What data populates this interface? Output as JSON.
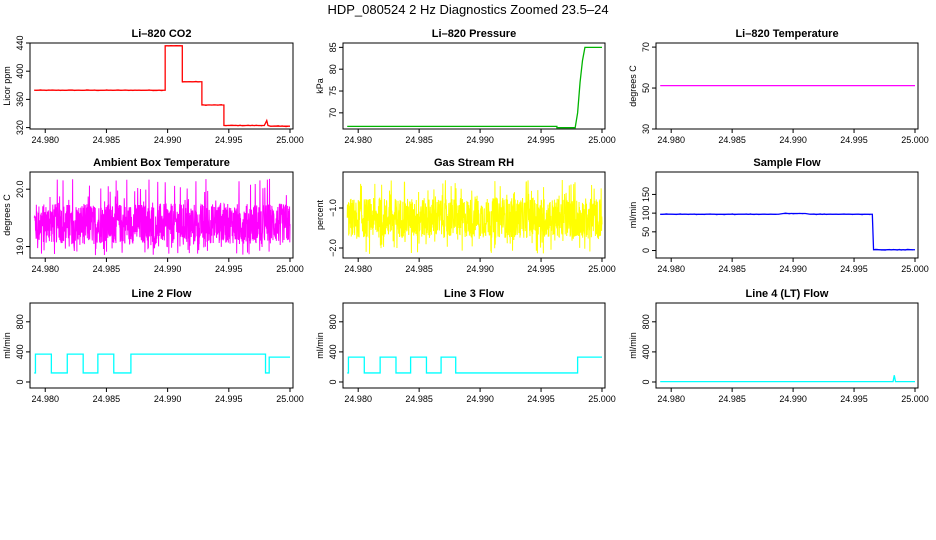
{
  "page_title": "HDP_080524  2 Hz Diagnostics Zoomed 23.5–24",
  "chart_data": [
    {
      "type": "line",
      "title": "Li–820 CO2",
      "xlabel": "",
      "ylabel": "Licor ppm",
      "color": "#ff0000",
      "xlim": [
        24.979,
        25.0
      ],
      "ylim": [
        318,
        440
      ],
      "x_ticks": [
        24.98,
        24.985,
        24.99,
        24.995,
        25.0
      ],
      "x_tick_labels": [
        "24.980",
        "24.985",
        "24.990",
        "24.995",
        "25.000"
      ],
      "y_ticks": [
        320,
        360,
        400,
        440
      ],
      "y_tick_labels": [
        "320",
        "360",
        "400",
        "440"
      ],
      "noise": 1,
      "series": [
        {
          "x": [
            24.9791,
            24.9898,
            24.9898,
            24.9912,
            24.9912,
            24.9928,
            24.9928,
            24.9946,
            24.9946,
            24.9979,
            24.9981,
            24.9982,
            24.9984,
            25.0
          ],
          "y": [
            373,
            373,
            436,
            436,
            385,
            385,
            352,
            352,
            323,
            323,
            330,
            323,
            322,
            322
          ]
        }
      ]
    },
    {
      "type": "line",
      "title": "Li–820 Pressure",
      "xlabel": "",
      "ylabel": "kPa",
      "color": "#00b400",
      "xlim": [
        24.979,
        25.0
      ],
      "ylim": [
        66.3,
        86
      ],
      "x_ticks": [
        24.98,
        24.985,
        24.99,
        24.995,
        25.0
      ],
      "x_tick_labels": [
        "24.980",
        "24.985",
        "24.990",
        "24.995",
        "25.000"
      ],
      "y_ticks": [
        70,
        75,
        80,
        85
      ],
      "y_tick_labels": [
        "70",
        "75",
        "80",
        "85"
      ],
      "noise": 0,
      "series": [
        {
          "x": [
            24.9791,
            24.9963,
            24.9963,
            24.9978,
            24.998,
            24.9982,
            24.9984,
            24.9986,
            25.0
          ],
          "y": [
            66.9,
            66.9,
            66.6,
            66.6,
            70,
            77,
            82,
            85,
            85
          ]
        }
      ]
    },
    {
      "type": "line",
      "title": "Li–820 Temperature",
      "xlabel": "",
      "ylabel": "degrees C",
      "color": "#ff00ff",
      "xlim": [
        24.979,
        25.0
      ],
      "ylim": [
        30,
        72
      ],
      "x_ticks": [
        24.98,
        24.985,
        24.99,
        24.995,
        25.0
      ],
      "x_tick_labels": [
        "24.980",
        "24.985",
        "24.990",
        "24.995",
        "25.000"
      ],
      "y_ticks": [
        30,
        50,
        70
      ],
      "y_tick_labels": [
        "30",
        "50",
        "70"
      ],
      "noise": 0,
      "series": [
        {
          "x": [
            24.9791,
            25.0
          ],
          "y": [
            51.2,
            51.2
          ]
        }
      ]
    },
    {
      "type": "line",
      "title": "Ambient Box Temperature",
      "xlabel": "",
      "ylabel": "degrees C",
      "color": "#ff00ff",
      "xlim": [
        24.979,
        25.0
      ],
      "ylim": [
        18.8,
        20.3
      ],
      "x_ticks": [
        24.98,
        24.985,
        24.99,
        24.995,
        25.0
      ],
      "x_tick_labels": [
        "24.980",
        "24.985",
        "24.990",
        "24.995",
        "25.000"
      ],
      "y_ticks": [
        19.0,
        20.0
      ],
      "y_tick_labels": [
        "19.0",
        "20.0"
      ],
      "noise_band": [
        19.05,
        19.75
      ],
      "noise_spike": [
        18.85,
        20.2
      ],
      "series": []
    },
    {
      "type": "line",
      "title": "Gas Stream RH",
      "xlabel": "",
      "ylabel": "percent",
      "color": "#ffff00",
      "xlim": [
        24.979,
        25.0
      ],
      "ylim": [
        -2.25,
        -0.1
      ],
      "x_ticks": [
        24.98,
        24.985,
        24.99,
        24.995,
        25.0
      ],
      "x_tick_labels": [
        "24.980",
        "24.985",
        "24.990",
        "24.995",
        "25.000"
      ],
      "y_ticks": [
        -2.0,
        -1.0
      ],
      "y_tick_labels": [
        "−2.0",
        "−1.0"
      ],
      "noise_band": [
        -1.75,
        -0.75
      ],
      "noise_spike": [
        -2.2,
        -0.3
      ],
      "series": []
    },
    {
      "type": "line",
      "title": "Sample Flow",
      "xlabel": "",
      "ylabel": "ml/min",
      "color": "#0000ff",
      "xlim": [
        24.979,
        25.0
      ],
      "ylim": [
        -20,
        210
      ],
      "x_ticks": [
        24.98,
        24.985,
        24.99,
        24.995,
        25.0
      ],
      "x_tick_labels": [
        "24.980",
        "24.985",
        "24.990",
        "24.995",
        "25.000"
      ],
      "y_ticks": [
        0,
        50,
        100,
        150
      ],
      "y_tick_labels": [
        "0",
        "50",
        "100",
        "150"
      ],
      "noise": 1,
      "series": [
        {
          "x": [
            24.9791,
            24.9888,
            24.9892,
            24.991,
            24.9914,
            24.9965,
            24.9966,
            25.0
          ],
          "y": [
            97,
            97,
            99,
            99,
            97,
            97,
            2,
            2
          ]
        }
      ]
    },
    {
      "type": "line",
      "title": "Line 2 Flow",
      "xlabel": "",
      "ylabel": "ml/min",
      "color": "#00ffff",
      "xlim": [
        24.979,
        25.0
      ],
      "ylim": [
        -80,
        1050
      ],
      "x_ticks": [
        24.98,
        24.985,
        24.99,
        24.995,
        25.0
      ],
      "x_tick_labels": [
        "24.980",
        "24.985",
        "24.990",
        "24.995",
        "25.000"
      ],
      "y_ticks": [
        0,
        400,
        800
      ],
      "y_tick_labels": [
        "0",
        "400",
        "800"
      ],
      "noise": 0,
      "series": [
        {
          "x": [
            24.9791,
            24.9792,
            24.9792,
            24.9805,
            24.9805,
            24.9818,
            24.9818,
            24.9831,
            24.9831,
            24.9843,
            24.9843,
            24.9856,
            24.9856,
            24.987,
            24.987,
            24.998,
            24.998,
            24.9983,
            24.9983,
            25.0
          ],
          "y": [
            120,
            120,
            370,
            370,
            120,
            120,
            370,
            370,
            120,
            120,
            370,
            370,
            120,
            120,
            370,
            370,
            120,
            120,
            330,
            330
          ]
        }
      ]
    },
    {
      "type": "line",
      "title": "Line 3 Flow",
      "xlabel": "",
      "ylabel": "ml/min",
      "color": "#00ffff",
      "xlim": [
        24.979,
        25.0
      ],
      "ylim": [
        -80,
        1050
      ],
      "x_ticks": [
        24.98,
        24.985,
        24.99,
        24.995,
        25.0
      ],
      "x_tick_labels": [
        "24.980",
        "24.985",
        "24.990",
        "24.995",
        "25.000"
      ],
      "y_ticks": [
        0,
        400,
        800
      ],
      "y_tick_labels": [
        "0",
        "400",
        "800"
      ],
      "noise": 0,
      "series": [
        {
          "x": [
            24.9791,
            24.9792,
            24.9792,
            24.9805,
            24.9805,
            24.9818,
            24.9818,
            24.9831,
            24.9831,
            24.9843,
            24.9843,
            24.9856,
            24.9856,
            24.9868,
            24.9868,
            24.988,
            24.988,
            24.998,
            24.998,
            25.0
          ],
          "y": [
            120,
            120,
            330,
            330,
            120,
            120,
            330,
            330,
            120,
            120,
            330,
            330,
            120,
            120,
            330,
            330,
            120,
            120,
            330,
            330
          ]
        }
      ]
    },
    {
      "type": "line",
      "title": "Line 4 (LT) Flow",
      "xlabel": "",
      "ylabel": "ml/min",
      "color": "#00ffff",
      "xlim": [
        24.979,
        25.0
      ],
      "ylim": [
        -80,
        1050
      ],
      "x_ticks": [
        24.98,
        24.985,
        24.99,
        24.995,
        25.0
      ],
      "x_tick_labels": [
        "24.980",
        "24.985",
        "24.990",
        "24.995",
        "25.000"
      ],
      "y_ticks": [
        0,
        400,
        800
      ],
      "y_tick_labels": [
        "0",
        "400",
        "800"
      ],
      "noise": 0,
      "series": [
        {
          "x": [
            24.9791,
            24.9982,
            24.9983,
            24.9984,
            24.9985,
            25.0
          ],
          "y": [
            5,
            5,
            90,
            5,
            5,
            5
          ]
        }
      ]
    }
  ]
}
